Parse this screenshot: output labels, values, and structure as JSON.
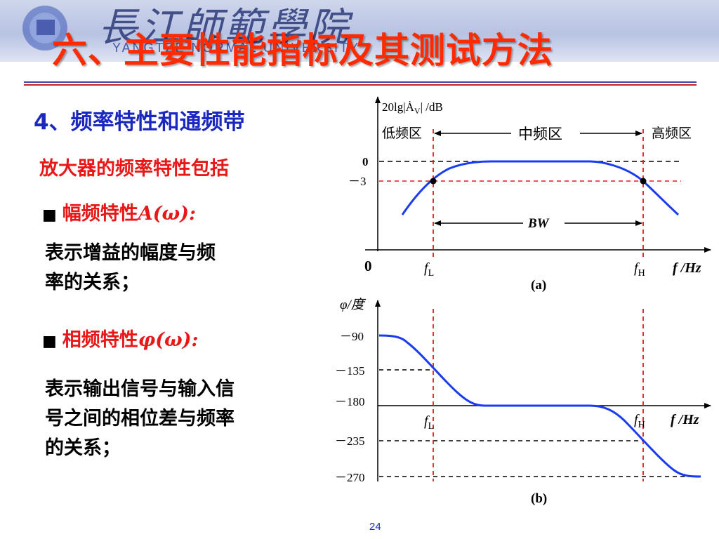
{
  "header": {
    "school_calligraphy": "長江師範學院",
    "school_english": "YANGTZE NORMAL UNIVERSITY",
    "slide_title": "六、主要性能指标及其测试方法"
  },
  "section_heading": "4、频率特性和通频带",
  "intro": "放大器的频率特性包括",
  "bullets": [
    {
      "label": "幅频特性",
      "math": "A(ω):",
      "description": [
        "表示增益的幅度与频",
        "率的关系；"
      ]
    },
    {
      "label": "相频特性",
      "math": "φ(ω):",
      "description": [
        "表示输出信号与输入信",
        "号之间的相位差与频率",
        "的关系；"
      ]
    }
  ],
  "figure_a": {
    "y_axis_label": "20lg|Ȧ",
    "y_axis_sub": "V",
    "y_axis_unit": "| /dB",
    "y_ticks": [
      "0",
      "－3"
    ],
    "origin": "0",
    "x_axis_label": "f /Hz",
    "fl": "f",
    "fl_sub": "L",
    "fh": "f",
    "fh_sub": "H",
    "region_low": "低频区",
    "region_mid": "中频区",
    "region_high": "高频区",
    "bandwidth": "BW",
    "caption": "(a)"
  },
  "figure_b": {
    "y_axis_label": "φ/度",
    "y_ticks": [
      "－90",
      "－135",
      "－180",
      "－235",
      "－270"
    ],
    "x_axis_label": "f /Hz",
    "fl": "f",
    "fl_sub": "L",
    "fh": "f",
    "fh_sub": "H",
    "caption": "(b)"
  },
  "page_number": "24",
  "colors": {
    "title": "#ff2a00",
    "heading": "#1a28c0",
    "emphasis": "#e81818",
    "curve": "#1a3cf0",
    "marker": "#e81818"
  }
}
